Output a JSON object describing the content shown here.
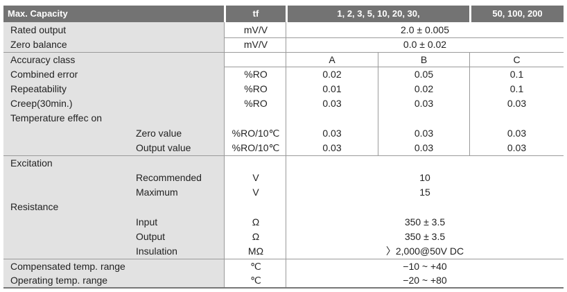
{
  "header": {
    "capacity": "Max. Capacity",
    "unit": "tf",
    "group1": "1, 2, 3, 5, 10, 20, 30,",
    "group2": "50, 100, 200"
  },
  "rows": {
    "rated_output": {
      "label": "Rated output",
      "unit": "mV/V",
      "value": "2.0 ± 0.005"
    },
    "zero_balance": {
      "label": "Zero balance",
      "unit": "mV/V",
      "value": "0.0 ± 0.02"
    },
    "accuracy_class": {
      "label": "Accuracy class",
      "a": "A",
      "b": "B",
      "c": "C"
    },
    "combined_error": {
      "label": "Combined error",
      "unit": "%RO",
      "a": "0.02",
      "b": "0.05",
      "c": "0.1"
    },
    "repeatability": {
      "label": "Repeatability",
      "unit": "%RO",
      "a": "0.01",
      "b": "0.02",
      "c": "0.1"
    },
    "creep": {
      "label": "Creep(30min.)",
      "unit": "%RO",
      "a": "0.03",
      "b": "0.03",
      "c": "0.03"
    },
    "temp_effect": {
      "label": "Temperature effec on"
    },
    "zero_value": {
      "label": "Zero value",
      "unit": "%RO/10℃",
      "a": "0.03",
      "b": "0.03",
      "c": "0.03"
    },
    "output_value": {
      "label": "Output value",
      "unit": "%RO/10℃",
      "a": "0.03",
      "b": "0.03",
      "c": "0.03"
    },
    "excitation": {
      "label": "Excitation"
    },
    "recommended": {
      "label": "Recommended",
      "unit": "V",
      "value": "10"
    },
    "maximum": {
      "label": "Maximum",
      "unit": "V",
      "value": "15"
    },
    "resistance": {
      "label": "Resistance"
    },
    "input": {
      "label": "Input",
      "unit": "Ω",
      "value": "350 ± 3.5"
    },
    "output": {
      "label": "Output",
      "unit": "Ω",
      "value": "350 ± 3.5"
    },
    "insulation": {
      "label": "Insulation",
      "unit": "MΩ",
      "value": "〉2,000@50V DC"
    },
    "compensated": {
      "label": "Compensated temp. range",
      "unit": "℃",
      "value": "−10 ~ +40"
    },
    "operating": {
      "label": "Operating temp. range",
      "unit": "℃",
      "value": "−20 ~ +80"
    }
  }
}
